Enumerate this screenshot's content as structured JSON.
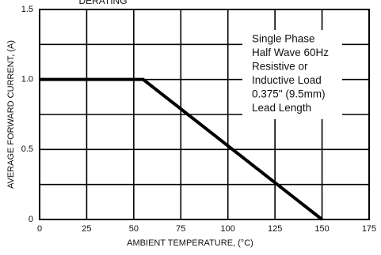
{
  "chart_data": {
    "type": "line",
    "title": "DERATING",
    "xlabel": "AMBIENT TEMPERATURE, (°C)",
    "ylabel": "AVERAGE FORWARD CURRENT, (A)",
    "x": [
      0,
      55,
      150
    ],
    "series": [
      {
        "color": "#000000",
        "values": [
          1.0,
          1.0,
          0
        ]
      }
    ],
    "xlim": [
      0,
      175
    ],
    "xticks": [
      0,
      25,
      50,
      75,
      100,
      125,
      150,
      175
    ],
    "ylim": [
      0,
      1.5
    ],
    "yticks": [
      0,
      0.5,
      {
        "value": 1,
        "label": "1.0"
      },
      {
        "value": 1.5,
        "label": "1.5"
      }
    ],
    "yminor": [
      0.25,
      0.75,
      1.25
    ],
    "grid": true,
    "annotation": [
      "Single Phase",
      "Half Wave 60Hz",
      "Resistive or",
      "Inductive Load",
      "0.375\" (9.5mm)",
      "Lead Length"
    ]
  }
}
